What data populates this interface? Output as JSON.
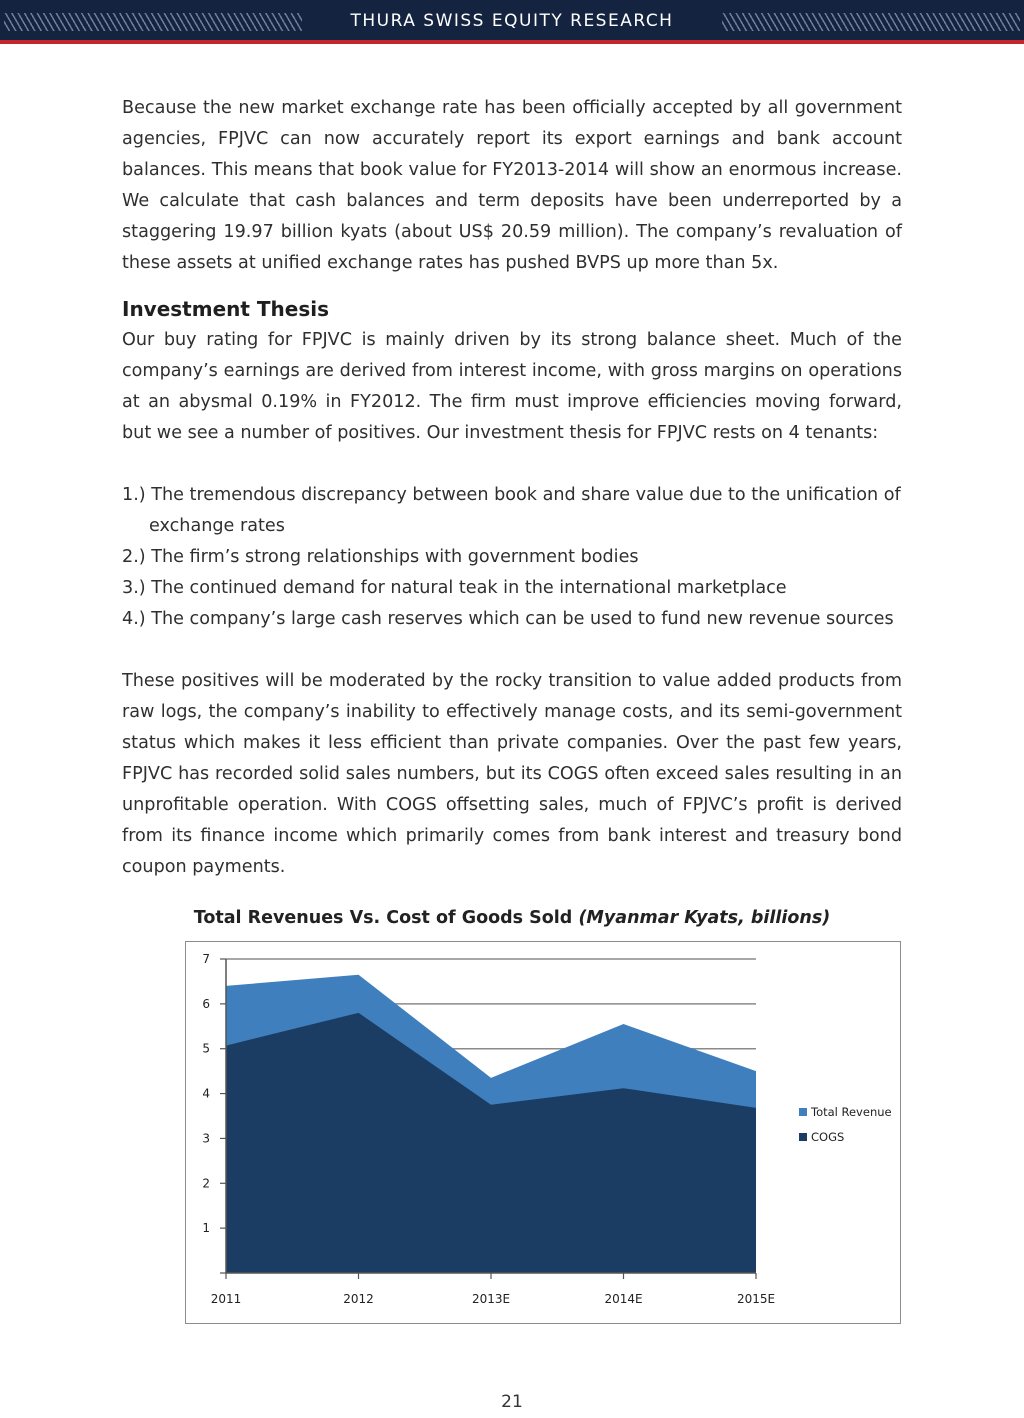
{
  "header": {
    "title": "THURA SWISS EQUITY RESEARCH"
  },
  "body": {
    "paragraph1": "Because the new market exchange rate has been officially accepted by all government agencies, FPJVC can now accurately report its export earnings and bank account balances. This means that book value for FY2013-2014 will show an enormous increase. We calculate that cash balances and term deposits have been underreported by a staggering 19.97 billion kyats (about US$ 20.59 million). The company’s revaluation of these assets at unified exchange rates has pushed BVPS up more than 5x.",
    "heading": "Investment Thesis",
    "paragraph2": "Our buy rating for FPJVC is mainly driven by its strong balance sheet. Much of the company’s earnings are derived from interest income, with gross margins on operations at an abysmal 0.19% in FY2012. The firm must improve efficiencies moving forward, but we see a number of positives. Our investment thesis for FPJVC rests on 4 tenants:",
    "list": [
      "1.) The tremendous discrepancy between book and share value due to the unification of exchange rates",
      "2.) The firm’s strong relationships with government bodies",
      "3.) The continued demand for natural teak in the international marketplace",
      "4.) The company’s large cash reserves which can be used to fund new revenue sources"
    ],
    "paragraph3": "These positives will be moderated by the rocky transition to value added products from raw logs, the company’s inability to effectively manage costs, and its semi-government status which makes it less efficient than private companies. Over the past few years, FPJVC has recorded solid sales numbers, but its COGS often exceed sales resulting in an unprofitable operation. With COGS offsetting sales, much of FPJVC’s profit is derived from its finance income which primarily comes from bank interest and treasury bond coupon payments."
  },
  "chart_title": {
    "main": "Total Revenues Vs. Cost of Goods Sold",
    "units": "(Myanmar Kyats, billions)"
  },
  "chart_data": {
    "type": "area",
    "title": "Total Revenues Vs. Cost of Goods Sold (Myanmar Kyats, billions)",
    "categories": [
      "2011",
      "2012",
      "2013E",
      "2014E",
      "2015E"
    ],
    "ylim": [
      0,
      7
    ],
    "yticks": [
      1,
      2,
      3,
      4,
      5,
      6,
      7
    ],
    "grid": true,
    "legend_position": "right",
    "series": [
      {
        "name": "Total Revenue",
        "color": "#3f7fbd",
        "values": [
          6.4,
          6.65,
          4.35,
          5.55,
          4.5
        ]
      },
      {
        "name": "COGS",
        "color": "#1b3c63",
        "values": [
          5.07,
          5.8,
          3.75,
          4.12,
          3.68
        ]
      }
    ]
  },
  "page_number": "21"
}
